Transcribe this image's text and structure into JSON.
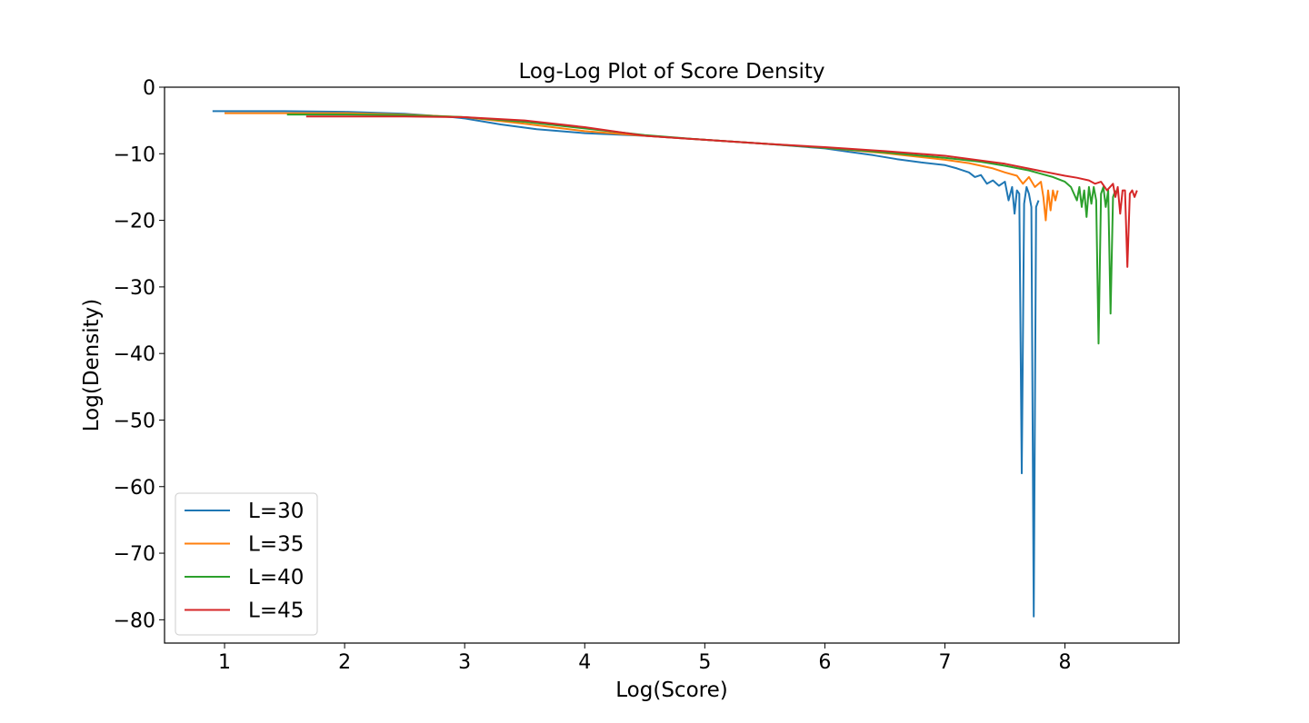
{
  "chart_data": {
    "type": "line",
    "title": "Log-Log Plot of Score Density",
    "xlabel": "Log(Score)",
    "ylabel": "Log(Density)",
    "xlim": [
      0.5,
      8.95
    ],
    "ylim": [
      -83.5,
      0
    ],
    "xticks": [
      1,
      2,
      3,
      4,
      5,
      6,
      7,
      8
    ],
    "xtick_labels": [
      "1",
      "2",
      "3",
      "4",
      "5",
      "6",
      "7",
      "8"
    ],
    "yticks": [
      0,
      -10,
      -20,
      -30,
      -40,
      -50,
      -60,
      -70,
      -80
    ],
    "ytick_labels": [
      "0",
      "−10",
      "−20",
      "−30",
      "−40",
      "−50",
      "−60",
      "−70",
      "−80"
    ],
    "grid": false,
    "legend_position": "lower-left",
    "series": [
      {
        "name": "L=30",
        "color": "#1f77b4",
        "x": [
          0.9,
          1.5,
          2.0,
          2.5,
          2.9,
          3.0,
          3.3,
          3.6,
          4.0,
          4.5,
          5.0,
          5.5,
          6.0,
          6.2,
          6.4,
          6.6,
          6.8,
          7.0,
          7.1,
          7.2,
          7.25,
          7.3,
          7.35,
          7.4,
          7.45,
          7.5,
          7.53,
          7.56,
          7.58,
          7.6,
          7.62,
          7.64,
          7.66,
          7.68,
          7.7,
          7.72,
          7.74,
          7.76,
          7.78
        ],
        "y": [
          -3.6,
          -3.6,
          -3.7,
          -4.0,
          -4.5,
          -4.7,
          -5.6,
          -6.3,
          -6.9,
          -7.3,
          -7.9,
          -8.5,
          -9.2,
          -9.7,
          -10.2,
          -10.8,
          -11.3,
          -11.7,
          -12.2,
          -12.8,
          -13.5,
          -13.2,
          -14.5,
          -14.0,
          -14.8,
          -14.2,
          -17.0,
          -15.0,
          -19.0,
          -15.5,
          -16.0,
          -58.0,
          -17.5,
          -15.0,
          -16.0,
          -18.0,
          -79.5,
          -18.0,
          -17.0
        ]
      },
      {
        "name": "L=35",
        "color": "#ff7f0e",
        "x": [
          1.0,
          1.5,
          2.0,
          2.5,
          3.0,
          3.5,
          4.0,
          4.5,
          5.0,
          5.5,
          6.0,
          6.5,
          7.0,
          7.2,
          7.4,
          7.5,
          7.6,
          7.65,
          7.7,
          7.75,
          7.8,
          7.82,
          7.84,
          7.86,
          7.88,
          7.9,
          7.92,
          7.94
        ],
        "y": [
          -3.9,
          -3.9,
          -3.9,
          -4.1,
          -4.5,
          -5.5,
          -6.6,
          -7.3,
          -7.9,
          -8.5,
          -9.1,
          -9.9,
          -10.9,
          -11.4,
          -12.2,
          -12.8,
          -13.3,
          -14.5,
          -13.5,
          -15.0,
          -14.2,
          -16.5,
          -20.0,
          -15.5,
          -18.5,
          -15.5,
          -17.0,
          -15.5
        ]
      },
      {
        "name": "L=40",
        "color": "#2ca02c",
        "x": [
          1.52,
          2.0,
          2.5,
          3.0,
          3.5,
          4.0,
          4.5,
          5.0,
          5.5,
          6.0,
          6.5,
          7.0,
          7.3,
          7.5,
          7.7,
          7.8,
          7.9,
          8.0,
          8.05,
          8.1,
          8.12,
          8.14,
          8.16,
          8.18,
          8.2,
          8.22,
          8.24,
          8.26,
          8.28,
          8.3,
          8.32,
          8.34,
          8.36,
          8.38,
          8.4,
          8.42
        ],
        "y": [
          -4.1,
          -4.1,
          -4.2,
          -4.5,
          -5.2,
          -6.2,
          -7.2,
          -7.9,
          -8.5,
          -9.1,
          -9.8,
          -10.6,
          -11.2,
          -11.8,
          -12.5,
          -13.0,
          -13.5,
          -14.2,
          -15.0,
          -17.0,
          -15.0,
          -18.0,
          -15.5,
          -19.5,
          -15.0,
          -17.5,
          -15.0,
          -17.0,
          -38.5,
          -16.0,
          -15.0,
          -18.0,
          -15.5,
          -34.0,
          -16.5,
          -15.5
        ]
      },
      {
        "name": "L=45",
        "color": "#d62728",
        "x": [
          1.68,
          2.0,
          2.5,
          3.0,
          3.5,
          4.0,
          4.5,
          5.0,
          5.5,
          6.0,
          6.5,
          7.0,
          7.5,
          7.8,
          8.0,
          8.1,
          8.2,
          8.25,
          8.3,
          8.35,
          8.4,
          8.42,
          8.44,
          8.46,
          8.48,
          8.5,
          8.52,
          8.54,
          8.56,
          8.58,
          8.6
        ],
        "y": [
          -4.4,
          -4.4,
          -4.4,
          -4.5,
          -5.0,
          -6.0,
          -7.3,
          -7.9,
          -8.5,
          -9.0,
          -9.6,
          -10.3,
          -11.5,
          -12.6,
          -13.3,
          -13.6,
          -14.0,
          -14.5,
          -14.2,
          -15.5,
          -14.5,
          -16.5,
          -15.0,
          -19.0,
          -15.5,
          -15.5,
          -27.0,
          -16.0,
          -15.5,
          -16.5,
          -15.5
        ]
      }
    ]
  }
}
